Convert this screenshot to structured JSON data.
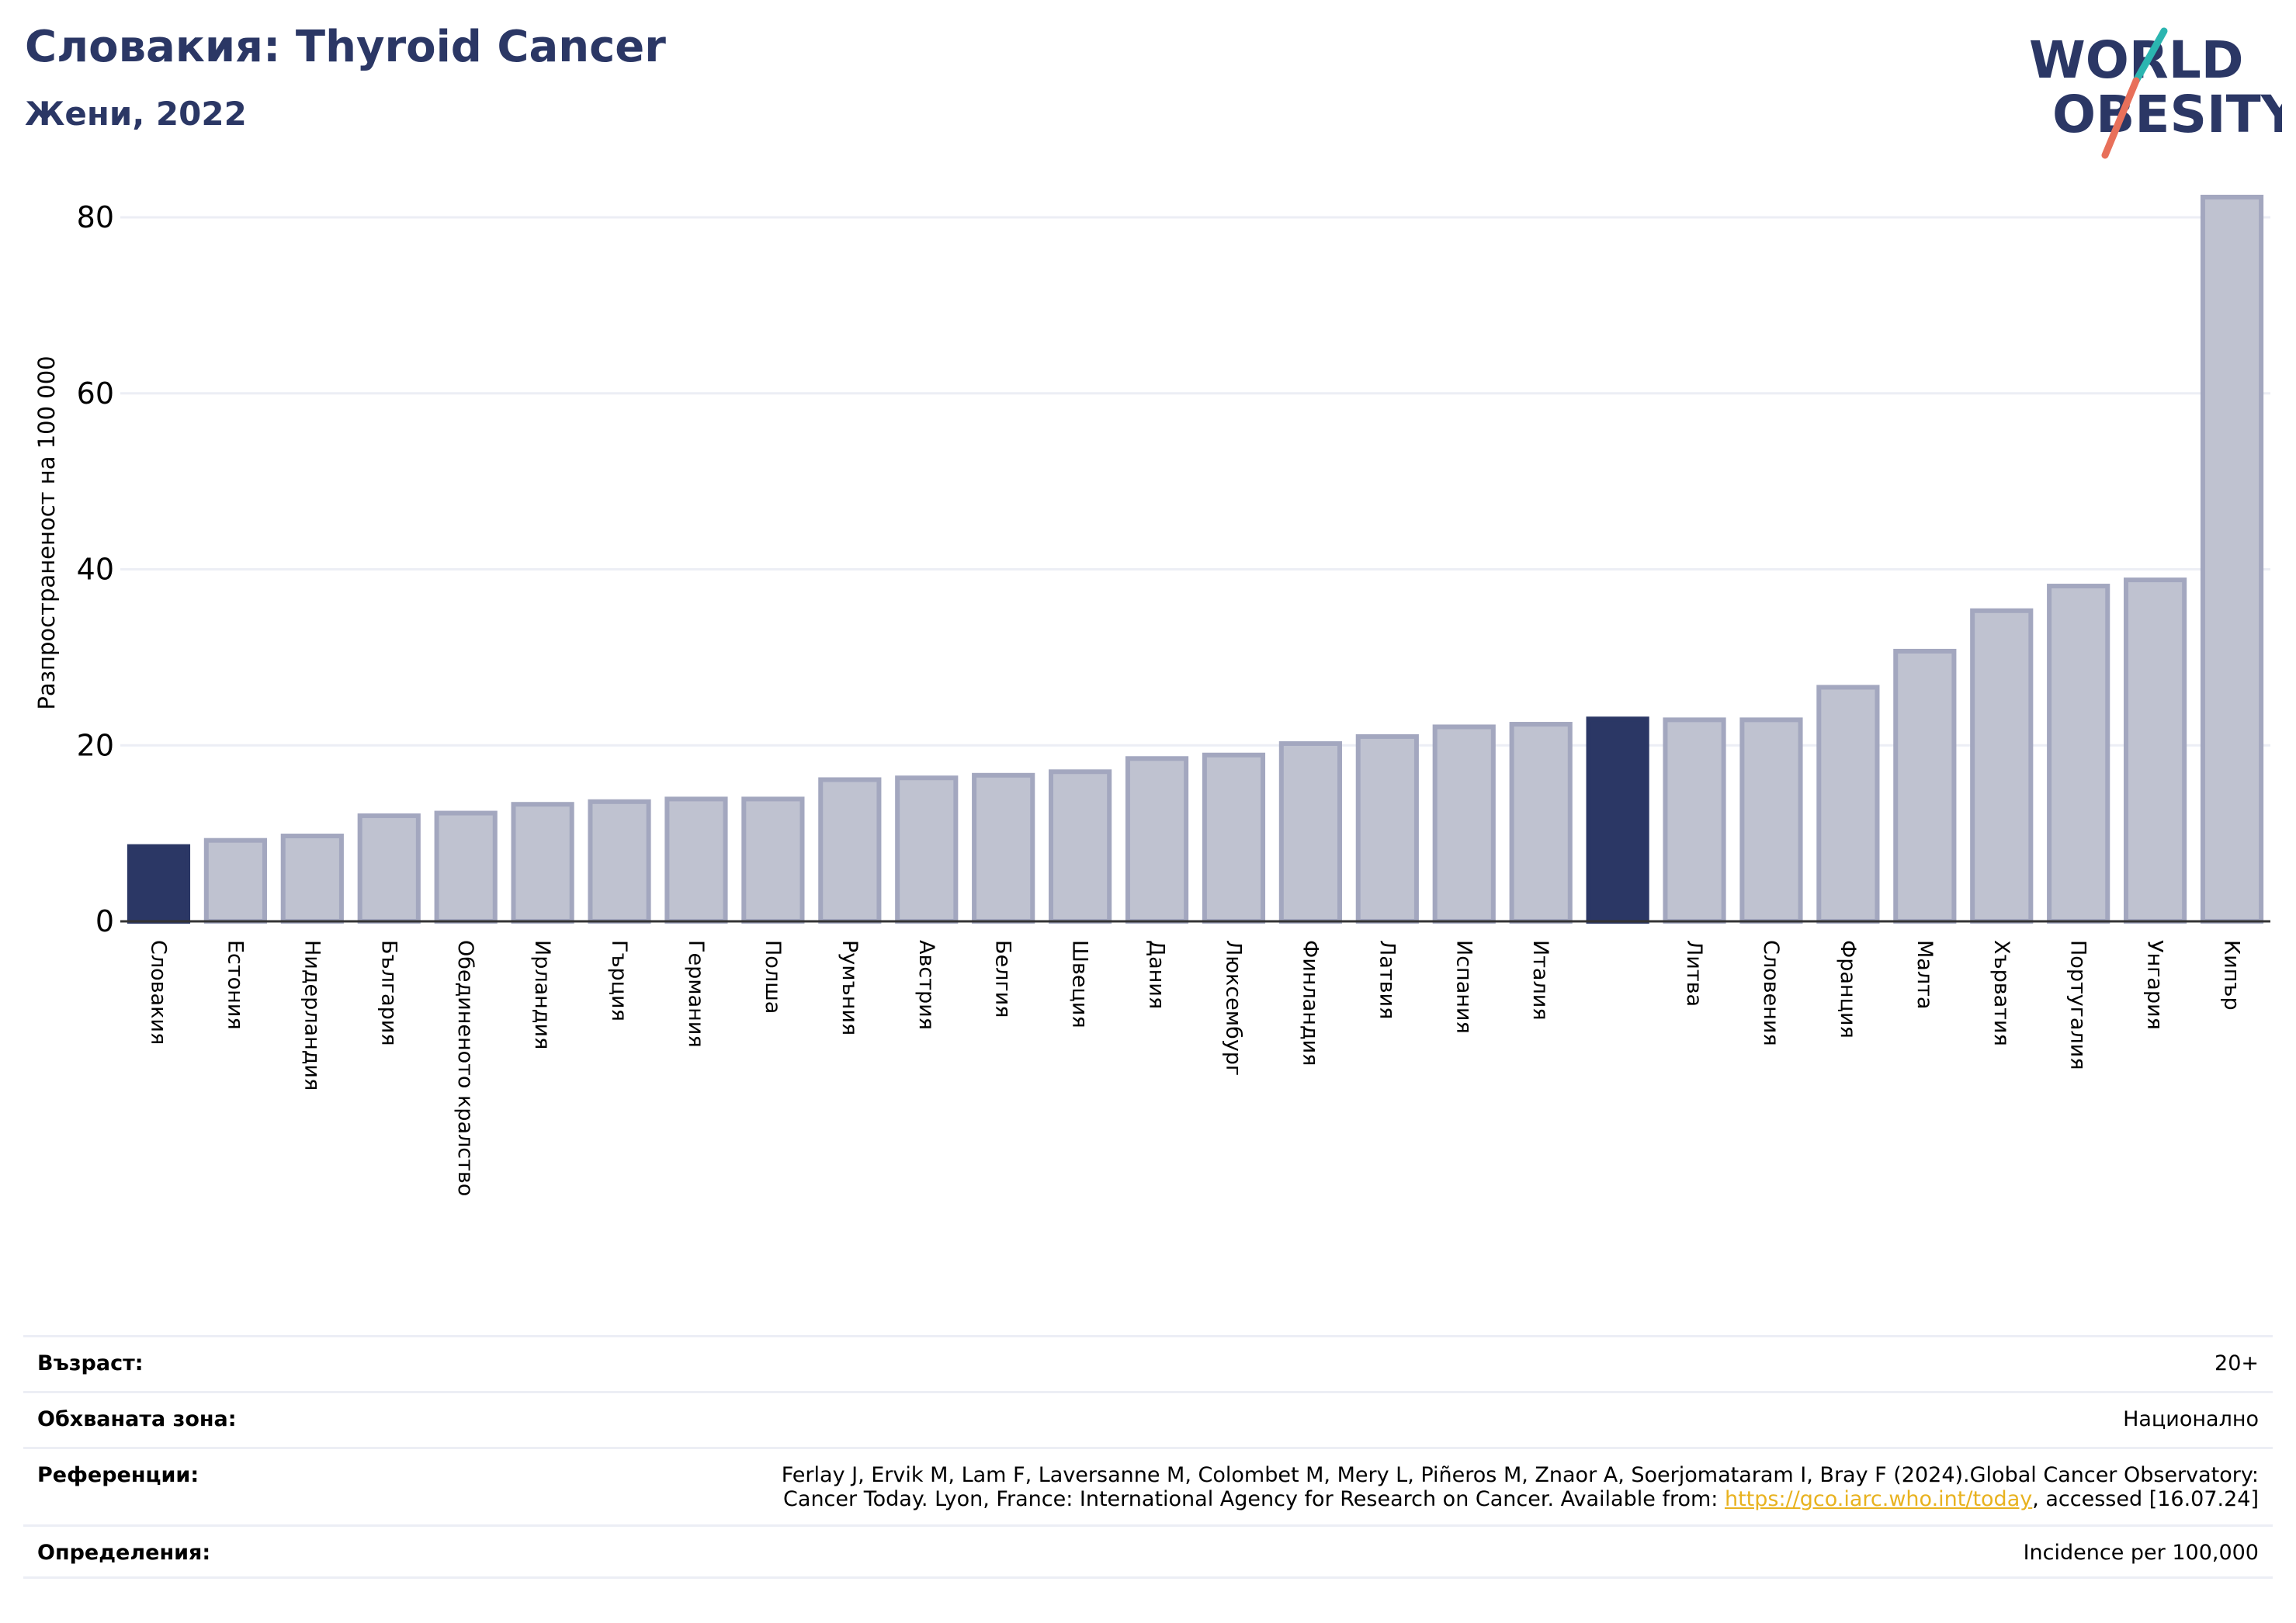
{
  "header": {
    "title": "Словакия: Thyroid Cancer",
    "subtitle": "Жени, 2022"
  },
  "logo": {
    "line1": "WORLD",
    "line2": "OBESITY"
  },
  "colors": {
    "highlight": "#2b3765",
    "bar_fill": "#bfc2d0",
    "bar_edge": "#a3a7bf",
    "grid": "#eceef5",
    "link": "#e8b21f"
  },
  "chart_data": {
    "type": "bar",
    "ylabel": "Разпространеност  на 100 000",
    "ylim": [
      0,
      83
    ],
    "yticks": [
      0,
      20,
      40,
      60,
      80
    ],
    "grid": true,
    "categories": [
      "Словакия",
      "Естония",
      "Нидерландия",
      "България",
      "Обединеното кралство",
      "Ирландия",
      "Гърция",
      "Германия",
      "Полша",
      "Румъния",
      "Австрия",
      "Белгия",
      "Швеция",
      "Дания",
      "Люксембург",
      "Финландия",
      "Латвия",
      "Испания",
      "Италия",
      "",
      "Литва",
      "Словения",
      "Франция",
      "Малта",
      "Хърватия",
      "Португалия",
      "Унгария",
      "Кипър"
    ],
    "values": [
      8.5,
      9.2,
      9.7,
      12.0,
      12.3,
      13.3,
      13.6,
      13.9,
      13.9,
      16.1,
      16.3,
      16.6,
      17.0,
      18.5,
      18.9,
      20.2,
      21.0,
      22.1,
      22.4,
      23.0,
      22.9,
      22.9,
      26.6,
      30.7,
      35.3,
      38.1,
      38.8,
      82.3
    ],
    "highlight": [
      0,
      19
    ]
  },
  "info": {
    "age_label": "Възраст:",
    "age_value": "20+",
    "area_label": "Обхваната зона:",
    "area_value": "Национално",
    "ref_label": "Референции:",
    "ref_line1": "Ferlay J, Ervik M, Lam F, Laversanne M, Colombet M, Mery L, Piñeros M, Znaor A, Soerjomataram I, Bray F (2024).Global Cancer Observatory:",
    "ref_line2a": "Cancer Today. Lyon, France: International Agency for Research on Cancer. Available from: ",
    "ref_link": "https://gco.iarc.who.int/today",
    "ref_line2b": ", accessed [16.07.24]",
    "def_label": "Определения:",
    "def_value": "Incidence per 100,000"
  }
}
